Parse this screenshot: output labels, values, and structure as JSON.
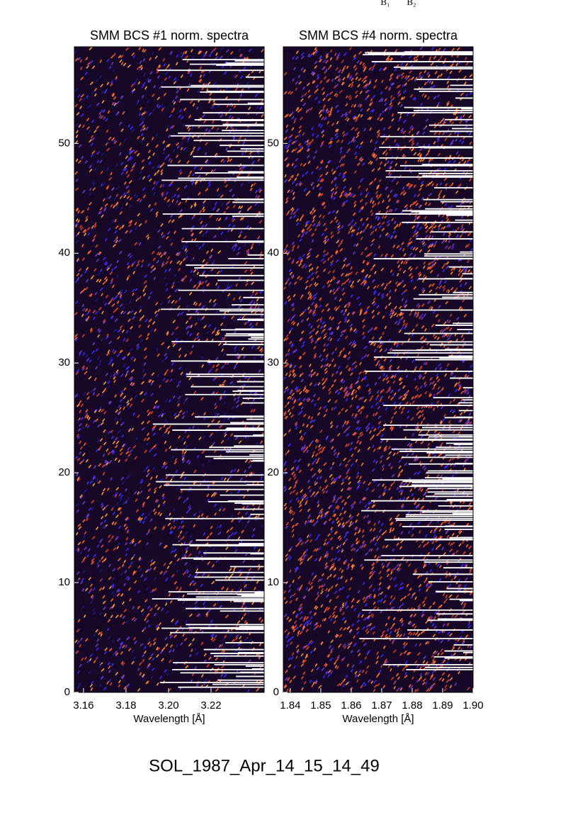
{
  "header": {
    "labels": [
      "B₁",
      "B₂"
    ]
  },
  "chart_data": [
    {
      "type": "image",
      "title": "SMM BCS #1 norm. spectra",
      "xlabel": "Wavelength [Å]",
      "xlim": [
        3.1557,
        3.245
      ],
      "xticks": [
        3.16,
        3.18,
        {
          "value": 3.2,
          "label": "3.20"
        },
        3.22
      ],
      "ylim": [
        0,
        58.8
      ],
      "yticks": [
        0,
        10,
        20,
        30,
        40,
        50
      ]
    },
    {
      "type": "image",
      "title": "SMM BCS #4 norm. spectra",
      "xlabel": "Wavelength [Å]",
      "xlim": [
        1.8377,
        1.9
      ],
      "xticks": [
        1.84,
        1.85,
        1.86,
        1.87,
        1.88,
        1.89,
        {
          "value": 1.9,
          "label": "1.90"
        }
      ],
      "ylim": [
        0,
        58.8
      ],
      "yticks": [
        0,
        10,
        20,
        30,
        40,
        50
      ]
    }
  ],
  "footer": "SOL_1987_Apr_14_15_14_49"
}
